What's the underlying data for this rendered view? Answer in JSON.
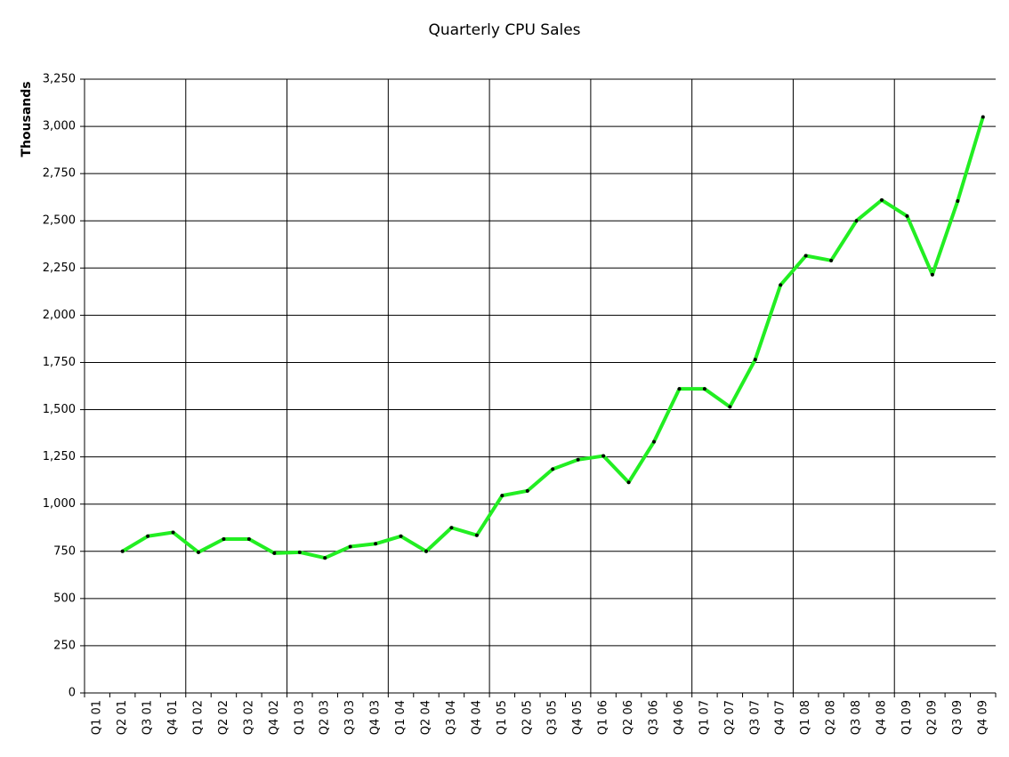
{
  "chart_data": {
    "type": "line",
    "title": "Quarterly CPU Sales",
    "y_label": "Thousands",
    "categories": [
      "Q1 01",
      "Q2 01",
      "Q3 01",
      "Q4 01",
      "Q1 02",
      "Q2 02",
      "Q3 02",
      "Q4 02",
      "Q1 03",
      "Q2 03",
      "Q3 03",
      "Q4 03",
      "Q1 04",
      "Q2 04",
      "Q3 04",
      "Q4 04",
      "Q1 05",
      "Q2 05",
      "Q3 05",
      "Q4 05",
      "Q1 06",
      "Q2 06",
      "Q3 06",
      "Q4 06",
      "Q1 07",
      "Q2 07",
      "Q3 07",
      "Q4 07",
      "Q1 08",
      "Q2 08",
      "Q3 08",
      "Q4 08",
      "Q1 09",
      "Q2 09",
      "Q3 09",
      "Q4 09"
    ],
    "series": [
      {
        "color": "#22ee22",
        "marker_color": "#000000",
        "values": [
          null,
          750,
          830,
          850,
          745,
          815,
          815,
          740,
          745,
          715,
          775,
          790,
          830,
          750,
          875,
          835,
          1045,
          1070,
          1185,
          1235,
          1255,
          1115,
          1330,
          1610,
          1610,
          1515,
          1765,
          2160,
          2315,
          2290,
          2500,
          2610,
          2525,
          2215,
          2605,
          3050
        ]
      }
    ],
    "ylim": [
      0,
      3250
    ],
    "yticks": [
      0,
      250,
      500,
      750,
      {
        "value": 1000,
        "label": "1,000"
      },
      {
        "value": 1250,
        "label": "1,250"
      },
      {
        "value": 1500,
        "label": "1,500"
      },
      {
        "value": 1750,
        "label": "1,750"
      },
      {
        "value": 2000,
        "label": "2,000"
      },
      {
        "value": 2250,
        "label": "2,250"
      },
      {
        "value": 2500,
        "label": "2,500"
      },
      {
        "value": 2750,
        "label": "2,750"
      },
      {
        "value": 3000,
        "label": "3,000"
      },
      {
        "value": 3250,
        "label": "3,250"
      }
    ],
    "grid": true
  }
}
